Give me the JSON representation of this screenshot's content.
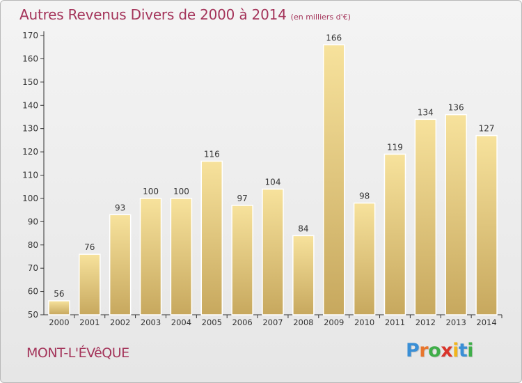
{
  "header": {
    "title": "Autres Revenus Divers de 2000 à 2014",
    "subtitle": "(en milliers d'€)"
  },
  "footer": {
    "city": "MONT-L'ÉVêQUE",
    "brand_letters": [
      "P",
      "r",
      "o",
      "x",
      "i",
      "t",
      "i"
    ],
    "brand_colors": [
      "#3a8fd6",
      "#e8762d",
      "#3fae49",
      "#d9342b",
      "#f2b51c",
      "#3a8fd6",
      "#3fae49"
    ]
  },
  "colors": {
    "title": "#a4345a",
    "bar_top": "#f7e29c",
    "bar_bottom": "#c7a85e",
    "axis": "#333333",
    "grid": "#d0d0d0"
  },
  "chart_data": {
    "type": "bar",
    "title": "Autres Revenus Divers de 2000 à 2014",
    "subtitle": "(en milliers d'€)",
    "xlabel": "",
    "ylabel": "",
    "categories": [
      "2000",
      "2001",
      "2002",
      "2003",
      "2004",
      "2005",
      "2006",
      "2007",
      "2008",
      "2009",
      "2010",
      "2011",
      "2012",
      "2013",
      "2014"
    ],
    "values": [
      56,
      76,
      93,
      100,
      100,
      116,
      97,
      104,
      84,
      166,
      98,
      119,
      134,
      136,
      127
    ],
    "ylim": [
      50,
      170
    ],
    "yticks": [
      50,
      60,
      70,
      80,
      90,
      100,
      110,
      120,
      130,
      140,
      150,
      160,
      170
    ],
    "grid": false,
    "data_labels": true
  }
}
